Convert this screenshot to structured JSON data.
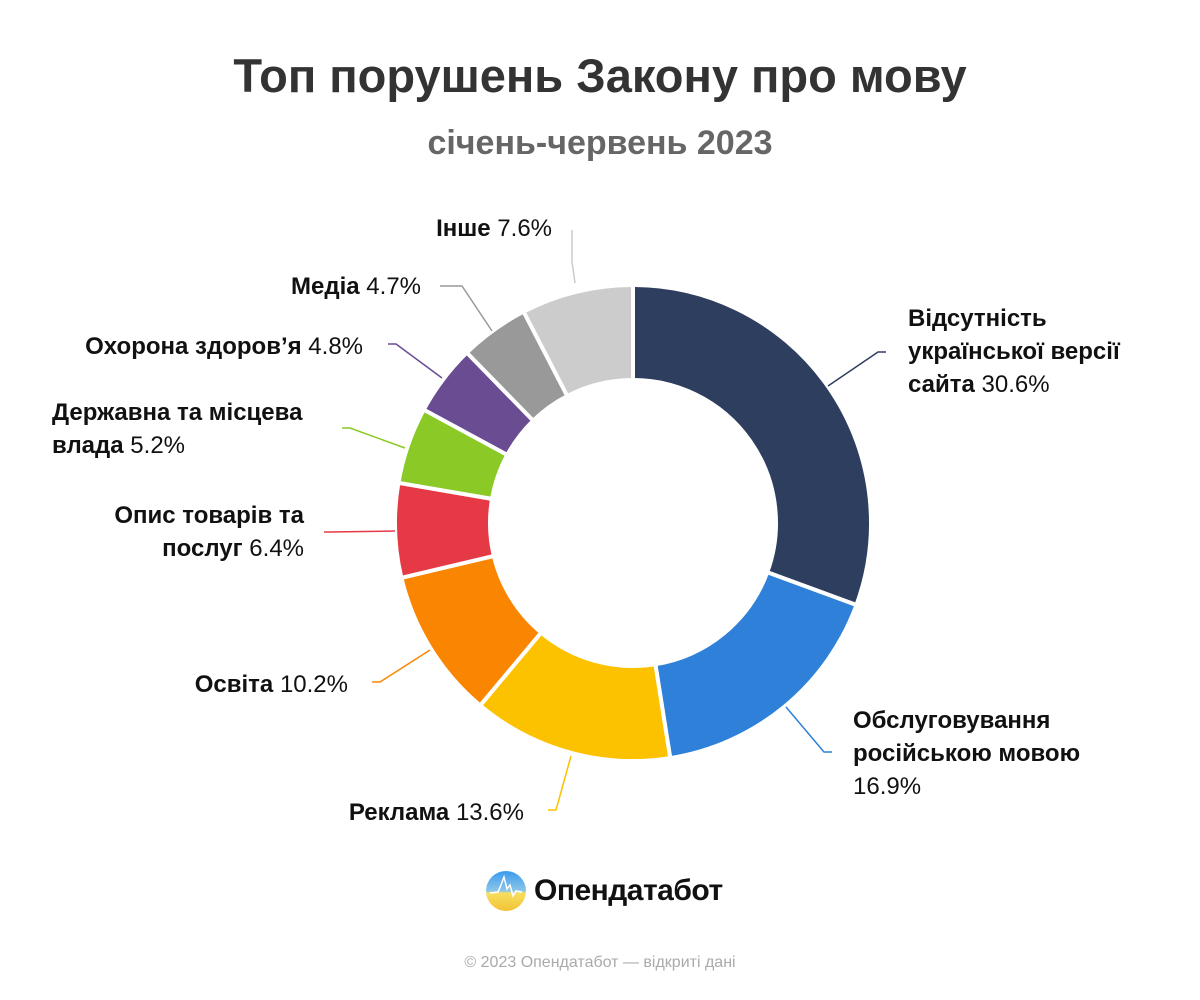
{
  "chart_data": {
    "type": "pie",
    "variant": "donut",
    "title": "Топ порушень Закону про мову",
    "subtitle": "січень-червень 2023",
    "start_angle": "top, clockwise",
    "slices": [
      {
        "label": "Відсутність української версії сайта",
        "value": 30.6,
        "display": "30.6%",
        "color": "#2e3e5e"
      },
      {
        "label": "Обслуговування російською мовою",
        "value": 16.9,
        "display": "16.9%",
        "color": "#2f80d8"
      },
      {
        "label": "Реклама",
        "value": 13.6,
        "display": "13.6%",
        "color": "#fcc200"
      },
      {
        "label": "Освіта",
        "value": 10.2,
        "display": "10.2%",
        "color": "#fa8500"
      },
      {
        "label": "Опис товарів та послуг",
        "value": 6.4,
        "display": "6.4%",
        "color": "#e63946"
      },
      {
        "label": "Державна та місцева влада",
        "value": 5.2,
        "display": "5.2%",
        "color": "#8ac926"
      },
      {
        "label": "Охорона здоров’я",
        "value": 4.8,
        "display": "4.8%",
        "color": "#6a4c93"
      },
      {
        "label": "Медіа",
        "value": 4.7,
        "display": "4.7%",
        "color": "#999999"
      },
      {
        "label": "Інше",
        "value": 7.6,
        "display": "7.6%",
        "color": "#cccccc"
      }
    ]
  },
  "branding": {
    "logo_text": "Опендатабот"
  },
  "footer": "© 2023 Опендатабот — відкриті дані"
}
